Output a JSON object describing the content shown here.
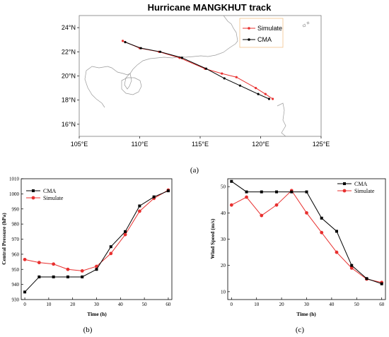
{
  "panel_labels": [
    "(a)",
    "(b)",
    "(c)"
  ],
  "colors": {
    "cma": "#000000",
    "simulate": "#e8302f",
    "land": "#9a9a9a",
    "legend_border": "#f2c48c"
  },
  "chart_data": [
    {
      "type": "line",
      "panel": "(a)",
      "title": "Hurricane MANGKHUT track",
      "xlim": [
        105,
        125
      ],
      "ylim": [
        15,
        25
      ],
      "x_tick_labels": [
        "105°E",
        "110°E",
        "115°E",
        "120°E",
        "125°E"
      ],
      "y_tick_labels": [
        "16°N",
        "18°N",
        "20°N",
        "22°N",
        "24°N"
      ],
      "legend_position": "top-right",
      "grid": false,
      "series": [
        {
          "name": "Simulate",
          "x": [
            121.0,
            120.4,
            119.6,
            118.0,
            116.8,
            115.4,
            113.3,
            111.6,
            110.0,
            108.6
          ],
          "y": [
            18.1,
            18.5,
            19.0,
            19.9,
            20.2,
            20.6,
            21.5,
            22.0,
            22.3,
            22.9
          ]
        },
        {
          "name": "CMA",
          "x": [
            120.7,
            119.8,
            118.3,
            117.0,
            115.5,
            113.5,
            111.7,
            110.1,
            108.8
          ],
          "y": [
            18.1,
            18.5,
            19.2,
            19.8,
            20.6,
            21.5,
            22.0,
            22.3,
            22.8
          ]
        }
      ]
    },
    {
      "type": "line",
      "panel": "(b)",
      "title": "",
      "xlabel": "Time (h)",
      "ylabel": "Central Pressure (hPa)",
      "xlim": [
        -1.5,
        61.5
      ],
      "ylim": [
        930,
        1010
      ],
      "x_ticks": [
        0,
        10,
        20,
        30,
        40,
        50,
        60
      ],
      "y_ticks": [
        930,
        940,
        950,
        960,
        970,
        980,
        990,
        1000,
        1010
      ],
      "legend_position": "top-left",
      "grid": false,
      "x": [
        0,
        6,
        12,
        18,
        24,
        30,
        36,
        42,
        48,
        54,
        60
      ],
      "series": [
        {
          "name": "CMA",
          "values": [
            935,
            945,
            945,
            945,
            945,
            950,
            965,
            975,
            992,
            998,
            1002
          ]
        },
        {
          "name": "Simulate",
          "values": [
            956.5,
            954.5,
            953.5,
            950,
            949,
            952,
            960.5,
            973,
            988.5,
            997,
            1002.5
          ]
        }
      ]
    },
    {
      "type": "line",
      "panel": "(c)",
      "title": "",
      "xlabel": "Time (h)",
      "ylabel": "Wind Speed (m/s)",
      "xlim": [
        -1.5,
        61.5
      ],
      "ylim": [
        7,
        53
      ],
      "x_ticks": [
        0,
        10,
        20,
        30,
        40,
        50,
        60
      ],
      "y_ticks": [
        10,
        20,
        30,
        40,
        50
      ],
      "legend_position": "top-right",
      "grid": false,
      "x": [
        0,
        6,
        12,
        18,
        24,
        30,
        36,
        42,
        48,
        54,
        60
      ],
      "series": [
        {
          "name": "CMA",
          "values": [
            52,
            48,
            48,
            48,
            48,
            48,
            38,
            33,
            20,
            15,
            13
          ]
        },
        {
          "name": "Simulate",
          "values": [
            43,
            46,
            39,
            43,
            48.5,
            40,
            32.5,
            25,
            19,
            14.8,
            13.5
          ]
        }
      ]
    }
  ]
}
